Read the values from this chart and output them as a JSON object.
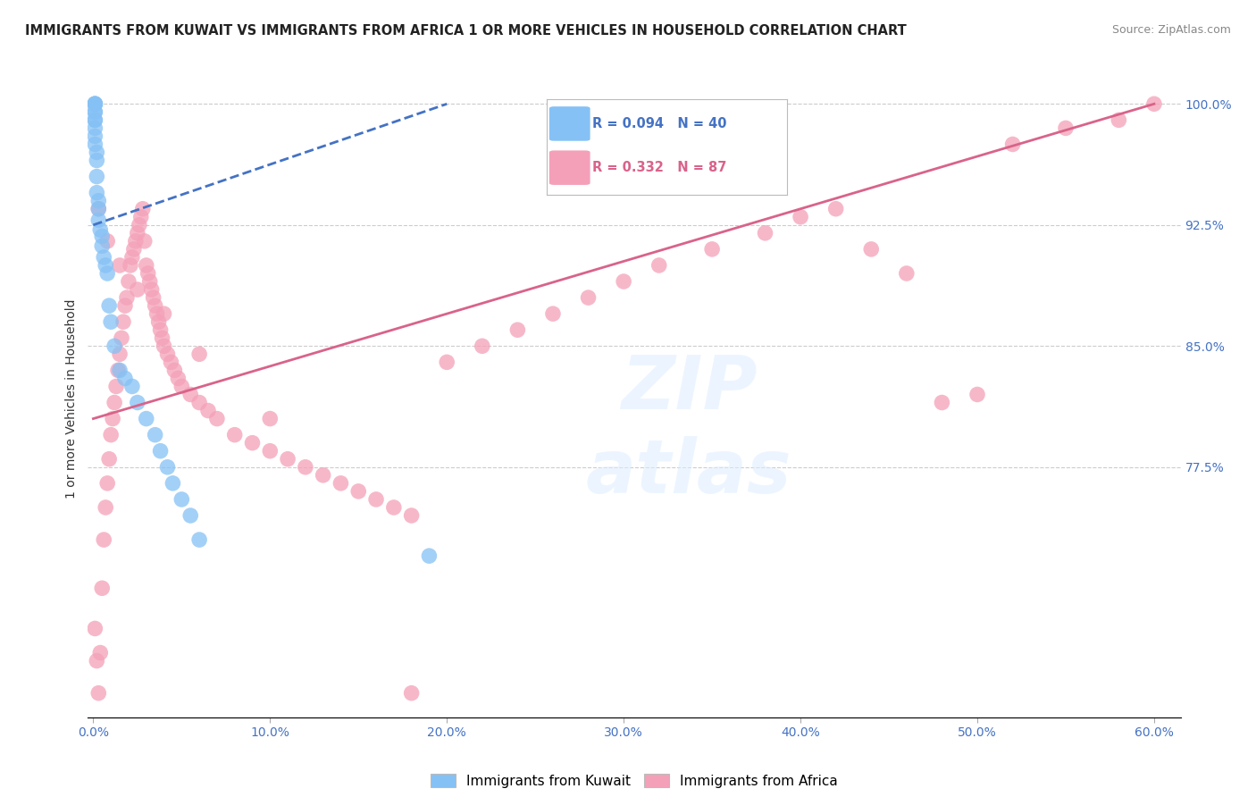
{
  "title": "IMMIGRANTS FROM KUWAIT VS IMMIGRANTS FROM AFRICA 1 OR MORE VEHICLES IN HOUSEHOLD CORRELATION CHART",
  "source": "Source: ZipAtlas.com",
  "ylabel": "1 or more Vehicles in Household",
  "legend_r_kuwait": "0.094",
  "legend_n_kuwait": "40",
  "legend_r_africa": "0.332",
  "legend_n_africa": "87",
  "color_kuwait": "#85C1F5",
  "color_africa": "#F4A0B8",
  "trendline_kuwait_color": "#4472C4",
  "trendline_africa_color": "#D9638A",
  "background_color": "#FFFFFF",
  "ytick_positions": [
    77.5,
    85.0,
    92.5,
    100.0
  ],
  "ytick_labels": [
    "77.5%",
    "85.0%",
    "92.5%",
    "100.0%"
  ],
  "ylim_min": 62.0,
  "ylim_max": 101.5,
  "xlim_min": -0.003,
  "xlim_max": 0.615,
  "kuwait_x": [
    0.001,
    0.001,
    0.001,
    0.001,
    0.001,
    0.001,
    0.001,
    0.001,
    0.001,
    0.001,
    0.001,
    0.002,
    0.002,
    0.002,
    0.002,
    0.003,
    0.003,
    0.003,
    0.004,
    0.005,
    0.005,
    0.006,
    0.007,
    0.008,
    0.009,
    0.01,
    0.012,
    0.015,
    0.018,
    0.022,
    0.025,
    0.03,
    0.035,
    0.038,
    0.042,
    0.045,
    0.05,
    0.055,
    0.06,
    0.19
  ],
  "kuwait_y": [
    100.0,
    100.0,
    100.0,
    100.0,
    99.5,
    99.5,
    99.0,
    99.0,
    98.5,
    98.0,
    97.5,
    97.0,
    96.5,
    95.5,
    94.5,
    94.0,
    93.5,
    92.8,
    92.2,
    91.8,
    91.2,
    90.5,
    90.0,
    89.5,
    87.5,
    86.5,
    85.0,
    83.5,
    83.0,
    82.5,
    81.5,
    80.5,
    79.5,
    78.5,
    77.5,
    76.5,
    75.5,
    74.5,
    73.0,
    72.0
  ],
  "africa_x": [
    0.001,
    0.002,
    0.003,
    0.004,
    0.005,
    0.006,
    0.007,
    0.008,
    0.009,
    0.01,
    0.011,
    0.012,
    0.013,
    0.014,
    0.015,
    0.016,
    0.017,
    0.018,
    0.019,
    0.02,
    0.021,
    0.022,
    0.023,
    0.024,
    0.025,
    0.026,
    0.027,
    0.028,
    0.029,
    0.03,
    0.031,
    0.032,
    0.033,
    0.034,
    0.035,
    0.036,
    0.037,
    0.038,
    0.039,
    0.04,
    0.042,
    0.044,
    0.046,
    0.048,
    0.05,
    0.055,
    0.06,
    0.065,
    0.07,
    0.08,
    0.09,
    0.1,
    0.11,
    0.12,
    0.13,
    0.14,
    0.15,
    0.16,
    0.17,
    0.18,
    0.2,
    0.22,
    0.24,
    0.26,
    0.28,
    0.3,
    0.32,
    0.35,
    0.38,
    0.4,
    0.42,
    0.44,
    0.46,
    0.48,
    0.5,
    0.52,
    0.55,
    0.58,
    0.6,
    0.003,
    0.008,
    0.015,
    0.025,
    0.04,
    0.06,
    0.1,
    0.18
  ],
  "africa_y": [
    67.5,
    65.5,
    63.5,
    66.0,
    70.0,
    73.0,
    75.0,
    76.5,
    78.0,
    79.5,
    80.5,
    81.5,
    82.5,
    83.5,
    84.5,
    85.5,
    86.5,
    87.5,
    88.0,
    89.0,
    90.0,
    90.5,
    91.0,
    91.5,
    92.0,
    92.5,
    93.0,
    93.5,
    91.5,
    90.0,
    89.5,
    89.0,
    88.5,
    88.0,
    87.5,
    87.0,
    86.5,
    86.0,
    85.5,
    85.0,
    84.5,
    84.0,
    83.5,
    83.0,
    82.5,
    82.0,
    81.5,
    81.0,
    80.5,
    79.5,
    79.0,
    78.5,
    78.0,
    77.5,
    77.0,
    76.5,
    76.0,
    75.5,
    75.0,
    74.5,
    84.0,
    85.0,
    86.0,
    87.0,
    88.0,
    89.0,
    90.0,
    91.0,
    92.0,
    93.0,
    93.5,
    91.0,
    89.5,
    81.5,
    82.0,
    97.5,
    98.5,
    99.0,
    100.0,
    93.5,
    91.5,
    90.0,
    88.5,
    87.0,
    84.5,
    80.5,
    63.5
  ],
  "trendline_africa_x0": 0.0,
  "trendline_africa_y0": 80.5,
  "trendline_africa_x1": 0.6,
  "trendline_africa_y1": 100.0,
  "trendline_kuwait_x0": 0.0,
  "trendline_kuwait_y0": 92.5,
  "trendline_kuwait_x1": 0.2,
  "trendline_kuwait_y1": 100.0
}
